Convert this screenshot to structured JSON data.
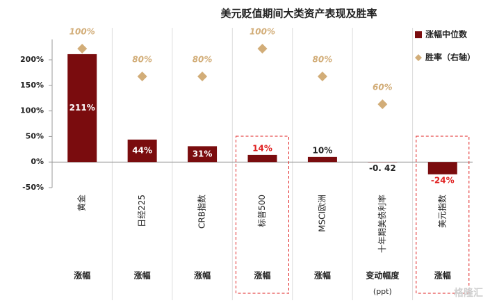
{
  "chart_data": {
    "type": "bar",
    "title": "美元贬值期间大类资产表现及胜率",
    "categories": [
      "黄金",
      "日经225",
      "CRB指数",
      "标普500",
      "MSCI欧洲",
      "十年期美债利率",
      "美元指数"
    ],
    "row_labels": [
      "涨幅",
      "涨幅",
      "涨幅",
      "涨幅",
      "涨幅",
      "变动幅度",
      "涨幅"
    ],
    "row_sublabels": [
      null,
      null,
      null,
      null,
      null,
      "(ppt)",
      null
    ],
    "series": [
      {
        "name": "涨幅中位数",
        "color": "#7a0c0e",
        "values": [
          211,
          44,
          31,
          14,
          10,
          -0.42,
          -24
        ],
        "value_labels": [
          "211%",
          "44%",
          "31%",
          "14%",
          "10%",
          "-0. 42",
          "-24%"
        ]
      },
      {
        "name": "胜率（右轴）",
        "color": "#d2ad78",
        "axis": "y2",
        "marker": "diamond",
        "values": [
          100,
          80,
          80,
          100,
          80,
          60,
          null
        ],
        "value_labels": [
          "100%",
          "80%",
          "80%",
          "100%",
          "80%",
          "60%",
          null
        ]
      }
    ],
    "highlight": [
      3,
      6
    ],
    "highlight_color": "#e02020",
    "ylim": [
      -50,
      240
    ],
    "yticks": [
      {
        "value": -50,
        "label": "-50%"
      },
      {
        "value": 0,
        "label": "0%"
      },
      {
        "value": 50,
        "label": "50%"
      },
      {
        "value": 100,
        "label": "100%"
      },
      {
        "value": 150,
        "label": "150%"
      },
      {
        "value": 200,
        "label": "200%"
      }
    ],
    "y2lim": [
      0,
      106.7
    ],
    "legend": "top-right",
    "watermark": "格隆汇"
  }
}
